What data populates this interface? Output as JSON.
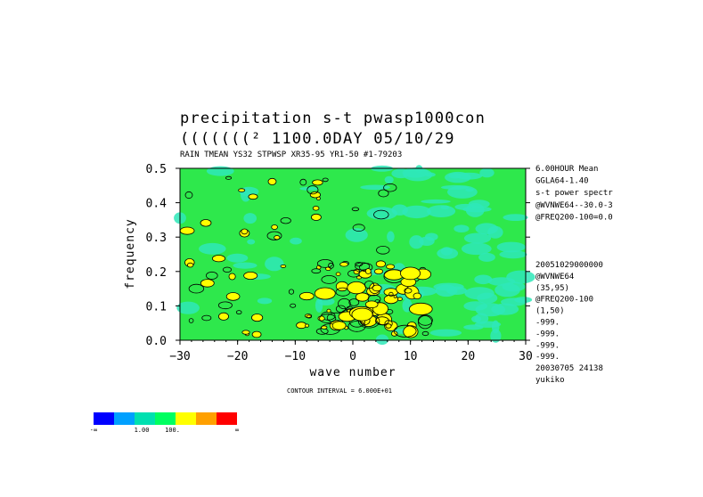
{
  "chart_data": {
    "type": "heatmap",
    "title": "precipitation s-t pwasp1000con",
    "title_line2": "(((((((²   1100.0DAY 05/10/29",
    "subtitle": "RAIN TMEAN YS32 STPWSP XR35-95 YR1-50      #1-79203",
    "xlabel": "wave number",
    "ylabel": "frequency",
    "xlim": [
      -30,
      30
    ],
    "ylim": [
      0,
      0.5
    ],
    "x_ticks": [
      "−30",
      "−20",
      "−10",
      "0",
      "10",
      "20",
      "30"
    ],
    "y_ticks": [
      "0.0",
      "0.1",
      "0.2",
      "0.3",
      "0.4",
      "0.5"
    ],
    "contour_interval_label": "CONTOUR INTERVAL = 6.000E+01",
    "background_level": "1.00 – 100.",
    "hotspot_note": "highest power concentrated at wave number 0 to 12, frequency 0.02 to 0.25",
    "side_info_top": [
      "6.00HOUR Mean",
      "GGLA64-1.40",
      "s-t power spectr",
      "@WVNWE64--30.0-3",
      "@FREQ200-100=0.0"
    ],
    "side_info_bottom": [
      "20051029000000",
      "@WVNWE64",
      "(35,95)",
      "@FREQ200-100",
      "(1,50)",
      "-999.",
      "-999.",
      "-999.",
      "-999.",
      "20030705  24138",
      "yukiko"
    ],
    "colorbar": {
      "colors": [
        "#0000ff",
        "#00a0ff",
        "#00e0b0",
        "#00ff60",
        "#ffff00",
        "#ffa000",
        "#ff0000"
      ],
      "labels": [
        "-∞",
        "1.00",
        "100.",
        "∞"
      ]
    },
    "colors": {
      "background_field": "#2ee84c",
      "low_patch": "#2ee8b8",
      "level_yellow": "#ffff00",
      "contour": "#000000"
    }
  }
}
